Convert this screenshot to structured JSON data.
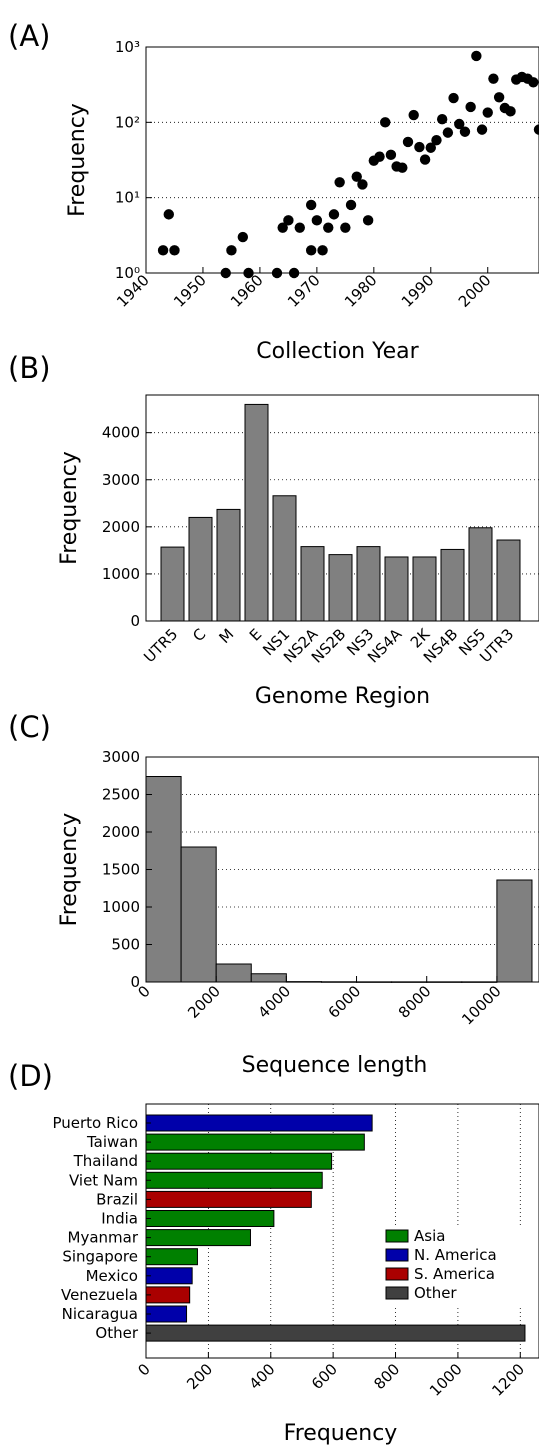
{
  "chart_data": [
    {
      "panel_label": "(A)",
      "type": "scatter",
      "xlabel": "Collection Year",
      "ylabel": "Frequency",
      "xlim": [
        1940,
        2009
      ],
      "ylim": [
        1,
        1000
      ],
      "yscale": "log",
      "x_ticks": [
        "1940",
        "1950",
        "1960",
        "1970",
        "1980",
        "1990",
        "2000"
      ],
      "y_ticks": [
        "10⁰",
        "10¹",
        "10²",
        "10³"
      ],
      "grid": "y dotted",
      "marker_color": "#000000",
      "x": [
        1943,
        1944,
        1945,
        1954,
        1955,
        1957,
        1958,
        1963,
        1964,
        1965,
        1966,
        1967,
        1969,
        1969,
        1970,
        1971,
        1972,
        1973,
        1974,
        1975,
        1976,
        1977,
        1978,
        1979,
        1980,
        1981,
        1982,
        1983,
        1984,
        1985,
        1986,
        1987,
        1988,
        1989,
        1990,
        1991,
        1992,
        1993,
        1994,
        1995,
        1996,
        1997,
        1998,
        1999,
        2000,
        2001,
        2002,
        2003,
        2004,
        2005,
        2006,
        2007,
        2008,
        2009
      ],
      "y": [
        2,
        6,
        2,
        1,
        2,
        3,
        1,
        1,
        4,
        5,
        1,
        4,
        2,
        8,
        5,
        2,
        4,
        6,
        16,
        4,
        8,
        19,
        15,
        5,
        31,
        35,
        100,
        37,
        26,
        25,
        55,
        125,
        47,
        32,
        46,
        58,
        110,
        73,
        210,
        95,
        75,
        160,
        760,
        80,
        135,
        380,
        215,
        155,
        140,
        370,
        400,
        380,
        340,
        80
      ]
    },
    {
      "panel_label": "(B)",
      "type": "bar",
      "xlabel": "Genome Region",
      "ylabel": "Frequency",
      "ylim": [
        0,
        4800
      ],
      "y_ticks": [
        0,
        1000,
        2000,
        3000,
        4000
      ],
      "grid": "y dotted",
      "bar_color": "#808080",
      "categories": [
        "UTR5",
        "C",
        "M",
        "E",
        "NS1",
        "NS2A",
        "NS2B",
        "NS3",
        "NS4A",
        "2K",
        "NS4B",
        "NS5",
        "UTR3"
      ],
      "values": [
        1570,
        2200,
        2370,
        4600,
        2660,
        1580,
        1410,
        1580,
        1360,
        1360,
        1520,
        1980,
        1720
      ]
    },
    {
      "panel_label": "(C)",
      "type": "bar",
      "subtype": "histogram",
      "xlabel": "Sequence length",
      "ylabel": "Frequency",
      "xlim": [
        0,
        11200
      ],
      "ylim": [
        0,
        3000
      ],
      "x_ticks": [
        0,
        2000,
        4000,
        6000,
        8000,
        10000
      ],
      "y_ticks": [
        0,
        500,
        1000,
        1500,
        2000,
        2500,
        3000
      ],
      "grid": "y dotted",
      "bar_color": "#808080",
      "bins": [
        {
          "from": 0,
          "to": 1000,
          "value": 2740
        },
        {
          "from": 1000,
          "to": 2000,
          "value": 1800
        },
        {
          "from": 2000,
          "to": 3000,
          "value": 240
        },
        {
          "from": 3000,
          "to": 4000,
          "value": 110
        },
        {
          "from": 4000,
          "to": 5000,
          "value": 5
        },
        {
          "from": 5000,
          "to": 6000,
          "value": 3
        },
        {
          "from": 6000,
          "to": 7000,
          "value": 2
        },
        {
          "from": 7000,
          "to": 8000,
          "value": 2
        },
        {
          "from": 8000,
          "to": 9000,
          "value": 2
        },
        {
          "from": 9000,
          "to": 10000,
          "value": 2
        },
        {
          "from": 10000,
          "to": 11000,
          "value": 1360
        }
      ]
    },
    {
      "panel_label": "(D)",
      "type": "bar",
      "orientation": "horizontal",
      "xlabel": "Frequency",
      "xlim": [
        0,
        1260
      ],
      "x_ticks": [
        0,
        200,
        400,
        600,
        800,
        1000,
        1200
      ],
      "grid": "x dotted",
      "legend_position": "right",
      "legend": [
        {
          "name": "Asia",
          "color": "#008000"
        },
        {
          "name": "N. America",
          "color": "#0000aa"
        },
        {
          "name": "S. America",
          "color": "#aa0000"
        },
        {
          "name": "Other",
          "color": "#404040"
        }
      ],
      "categories": [
        "Puerto Rico",
        "Taiwan",
        "Thailand",
        "Viet Nam",
        "Brazil",
        "India",
        "Myanmar",
        "Singapore",
        "Mexico",
        "Venezuela",
        "Nicaragua",
        "Other"
      ],
      "groups": [
        "N. America",
        "Asia",
        "Asia",
        "Asia",
        "S. America",
        "Asia",
        "Asia",
        "Asia",
        "N. America",
        "S. America",
        "N. America",
        "Other"
      ],
      "values": [
        725,
        700,
        595,
        565,
        530,
        410,
        335,
        165,
        148,
        140,
        130,
        1215
      ]
    }
  ]
}
